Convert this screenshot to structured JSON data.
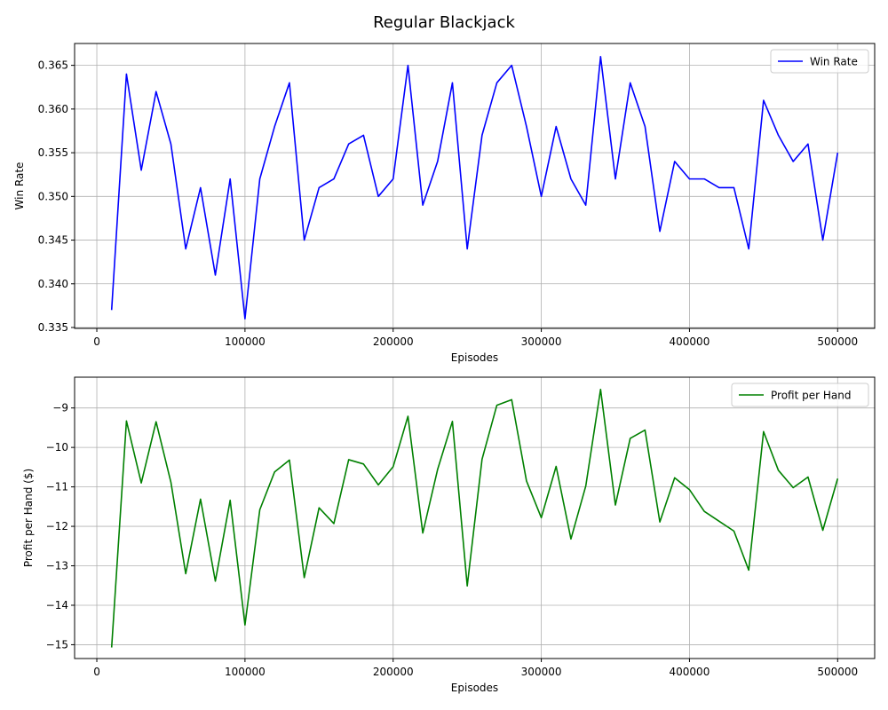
{
  "figure_title": "Regular Blackjack",
  "chart_data": [
    {
      "type": "line",
      "xlabel": "Episodes",
      "ylabel": "Win Rate",
      "xlim": [
        -15000,
        525000
      ],
      "ylim": [
        0.3349,
        0.3675
      ],
      "x_ticks": [
        0,
        100000,
        200000,
        300000,
        400000,
        500000
      ],
      "x_tick_labels": [
        "0",
        "100000",
        "200000",
        "300000",
        "400000",
        "500000"
      ],
      "y_ticks": [
        0.335,
        0.34,
        0.345,
        0.35,
        0.355,
        0.36,
        0.365
      ],
      "y_tick_labels": [
        "0.335",
        "0.340",
        "0.345",
        "0.350",
        "0.355",
        "0.360",
        "0.365"
      ],
      "grid": true,
      "legend_position": "top-right",
      "x": [
        10000,
        20000,
        30000,
        40000,
        50000,
        60000,
        70000,
        80000,
        90000,
        100000,
        110000,
        120000,
        130000,
        140000,
        150000,
        160000,
        170000,
        180000,
        190000,
        200000,
        210000,
        220000,
        230000,
        240000,
        250000,
        260000,
        270000,
        280000,
        290000,
        300000,
        310000,
        320000,
        330000,
        340000,
        350000,
        360000,
        370000,
        380000,
        390000,
        400000,
        410000,
        420000,
        430000,
        440000,
        450000,
        460000,
        470000,
        480000,
        490000,
        500000
      ],
      "series": [
        {
          "name": "Win Rate",
          "color": "#0000ff",
          "values": [
            0.337,
            0.364,
            0.353,
            0.362,
            0.356,
            0.344,
            0.351,
            0.341,
            0.352,
            0.336,
            0.352,
            0.358,
            0.363,
            0.345,
            0.351,
            0.352,
            0.356,
            0.357,
            0.35,
            0.352,
            0.365,
            0.349,
            0.354,
            0.363,
            0.344,
            0.357,
            0.363,
            0.365,
            0.358,
            0.35,
            0.358,
            0.352,
            0.349,
            0.366,
            0.352,
            0.363,
            0.358,
            0.346,
            0.354,
            0.352,
            0.352,
            0.351,
            0.351,
            0.344,
            0.361,
            0.357,
            0.354,
            0.356,
            0.345,
            0.355
          ]
        }
      ]
    },
    {
      "type": "line",
      "xlabel": "Episodes",
      "ylabel": "Profit per Hand ($)",
      "xlim": [
        -15000,
        525000
      ],
      "ylim": [
        -15.35,
        -8.22
      ],
      "x_ticks": [
        0,
        100000,
        200000,
        300000,
        400000,
        500000
      ],
      "x_tick_labels": [
        "0",
        "100000",
        "200000",
        "300000",
        "400000",
        "500000"
      ],
      "y_ticks": [
        -15,
        -14,
        -13,
        -12,
        -11,
        -10,
        -9
      ],
      "y_tick_labels": [
        "−15",
        "−14",
        "−13",
        "−12",
        "−11",
        "−10",
        "−9"
      ],
      "grid": true,
      "legend_position": "top-right",
      "x": [
        10000,
        20000,
        30000,
        40000,
        50000,
        60000,
        70000,
        80000,
        90000,
        100000,
        110000,
        120000,
        130000,
        140000,
        150000,
        160000,
        170000,
        180000,
        190000,
        200000,
        210000,
        220000,
        230000,
        240000,
        250000,
        260000,
        270000,
        280000,
        290000,
        300000,
        310000,
        320000,
        330000,
        340000,
        350000,
        360000,
        370000,
        380000,
        390000,
        400000,
        410000,
        420000,
        430000,
        440000,
        450000,
        460000,
        470000,
        480000,
        490000,
        500000
      ],
      "series": [
        {
          "name": "Profit per Hand",
          "color": "#008000",
          "values": [
            -15.07,
            -9.33,
            -10.9,
            -9.35,
            -10.88,
            -13.2,
            -11.31,
            -13.39,
            -11.34,
            -14.5,
            -11.58,
            -10.62,
            -10.32,
            -13.3,
            -11.53,
            -11.93,
            -10.31,
            -10.42,
            -10.95,
            -10.49,
            -9.21,
            -12.17,
            -10.56,
            -9.34,
            -13.51,
            -10.3,
            -8.93,
            -8.79,
            -10.85,
            -11.78,
            -10.48,
            -12.32,
            -10.98,
            -8.53,
            -11.46,
            -9.77,
            -9.56,
            -11.89,
            -10.77,
            -11.07,
            -11.62,
            -11.87,
            -12.12,
            -13.11,
            -9.6,
            -10.58,
            -11.02,
            -10.75,
            -12.1,
            -10.79
          ]
        }
      ]
    }
  ]
}
